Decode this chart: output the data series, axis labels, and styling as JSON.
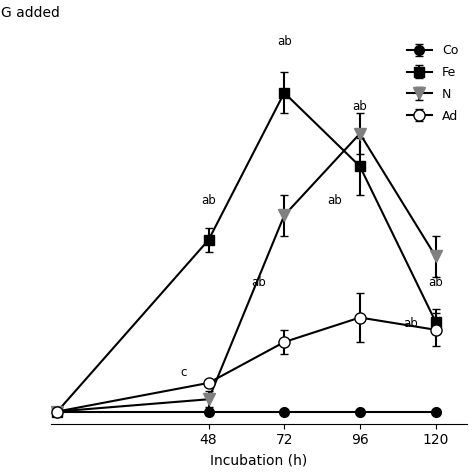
{
  "x": [
    0,
    48,
    72,
    96,
    120
  ],
  "control": [
    0.0,
    0.0,
    0.0,
    0.0,
    0.0
  ],
  "control_err": [
    0.0,
    0.0,
    0.0,
    0.0,
    0.0
  ],
  "fetal": [
    0,
    42,
    78,
    60,
    22
  ],
  "fetal_err": [
    0,
    3,
    5,
    7,
    3
  ],
  "N": [
    0,
    3,
    48,
    68,
    38
  ],
  "N_err": [
    0,
    2,
    5,
    5,
    5
  ],
  "adult": [
    0,
    7,
    17,
    23,
    20
  ],
  "adult_err": [
    0,
    0,
    3,
    6,
    4
  ],
  "xlabel": "Incubation (h)",
  "ylabel_text": "G added",
  "xticks": [
    48,
    72,
    96,
    120
  ],
  "ylim": [
    -3,
    92
  ],
  "xlim": [
    -2,
    130
  ],
  "legend_labels": [
    "Co",
    "Fe",
    "N",
    "Ad"
  ],
  "background": "#ffffff",
  "figsize": [
    4.74,
    4.74
  ],
  "dpi": 100
}
